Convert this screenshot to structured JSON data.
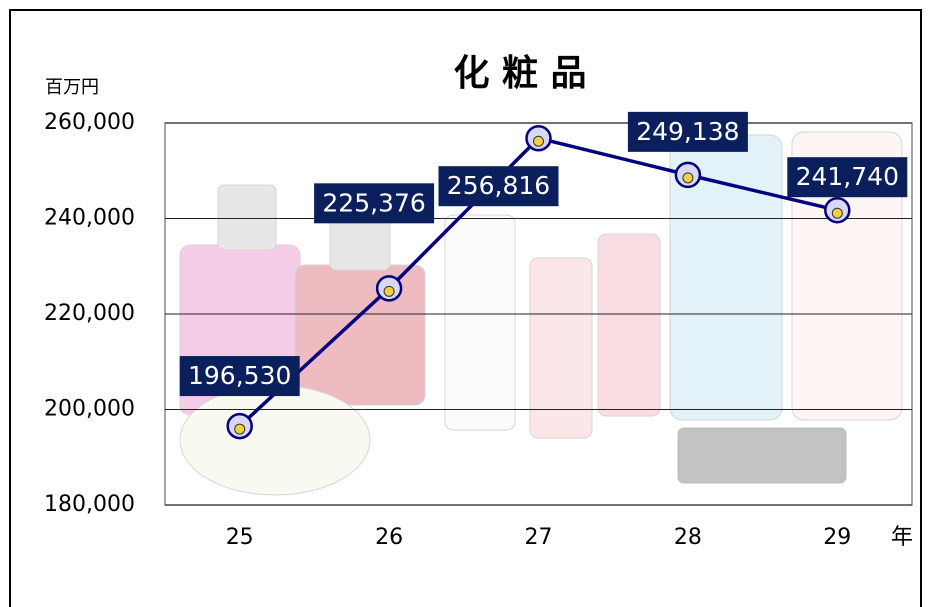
{
  "chart_data": {
    "type": "line",
    "title": "化 粧 品",
    "y_unit": "百万円",
    "x_unit": "年",
    "categories": [
      "25",
      "26",
      "27",
      "28",
      "29"
    ],
    "series": [
      {
        "name": "化粧品",
        "color": "#000080",
        "values": [
          196530,
          225376,
          256816,
          249138,
          241740
        ],
        "value_labels": [
          "196,530",
          "225,376",
          "256,816",
          "249,138",
          "241,740"
        ]
      }
    ],
    "ylim": [
      180000,
      260000
    ],
    "yticks": [
      {
        "value": 180000,
        "label": "180,000"
      },
      {
        "value": 200000,
        "label": "200,000"
      },
      {
        "value": 220000,
        "label": "220,000"
      },
      {
        "value": 240000,
        "label": "240,000"
      },
      {
        "value": 260000,
        "label": "260,000"
      }
    ],
    "grid": true
  }
}
